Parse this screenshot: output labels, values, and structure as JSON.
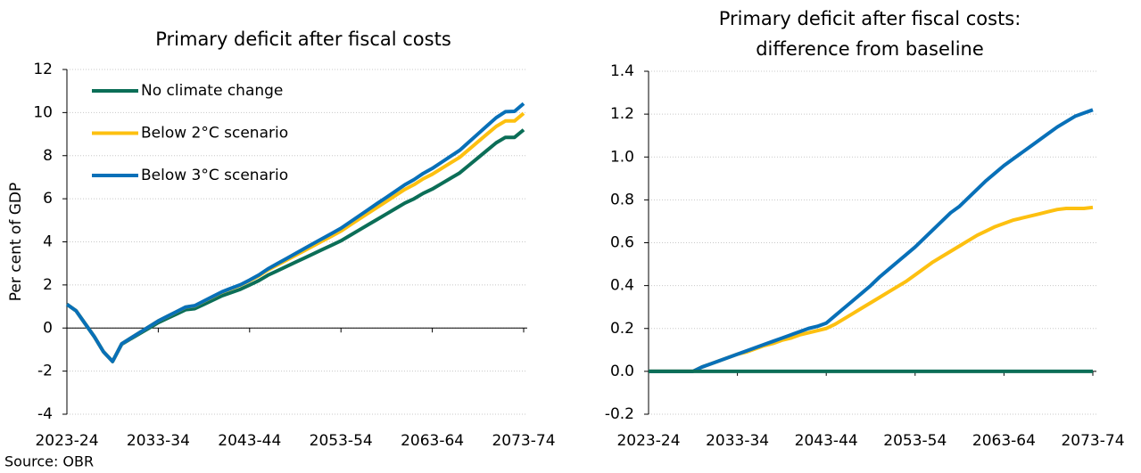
{
  "source": "Source: OBR",
  "chart_data": [
    {
      "type": "line",
      "title": [
        "Primary deficit after fiscal costs"
      ],
      "y_label": "Per cent of GDP",
      "categories": [
        "2023-24",
        null,
        null,
        null,
        null,
        null,
        null,
        null,
        null,
        null,
        "2033-34",
        null,
        null,
        null,
        null,
        null,
        null,
        null,
        null,
        null,
        "2043-44",
        null,
        null,
        null,
        null,
        null,
        null,
        null,
        null,
        null,
        "2053-54",
        null,
        null,
        null,
        null,
        null,
        null,
        null,
        null,
        null,
        "2063-64",
        null,
        null,
        null,
        null,
        null,
        null,
        null,
        null,
        null,
        "2073-74"
      ],
      "ylim": [
        -4,
        12
      ],
      "yticks": [
        -4,
        -2,
        0,
        2,
        4,
        6,
        8,
        10,
        12
      ],
      "grid": true,
      "legend": "upper left",
      "series": [
        {
          "name": "No climate change",
          "color": "#0b6e57",
          "values": [
            1.1,
            0.8,
            0.2,
            -0.4,
            -1.1,
            -1.55,
            -0.75,
            -0.5,
            -0.25,
            0.0,
            0.25,
            0.45,
            0.65,
            0.85,
            0.9,
            1.1,
            1.3,
            1.5,
            1.65,
            1.8,
            2.0,
            2.2,
            2.45,
            2.65,
            2.85,
            3.05,
            3.25,
            3.45,
            3.65,
            3.85,
            4.05,
            4.3,
            4.55,
            4.8,
            5.05,
            5.3,
            5.55,
            5.8,
            6.0,
            6.25,
            6.45,
            6.7,
            6.95,
            7.2,
            7.55,
            7.9,
            8.25,
            8.6,
            8.85,
            8.85,
            9.2
          ]
        },
        {
          "name": "Below 2°C scenario",
          "color": "#fdc010",
          "values": [
            1.1,
            0.8,
            0.2,
            -0.4,
            -1.1,
            -1.55,
            -0.73,
            -0.465,
            -0.2,
            0.065,
            0.33,
            0.54,
            0.755,
            0.97,
            1.03,
            1.245,
            1.455,
            1.67,
            1.83,
            1.99,
            2.2,
            2.42,
            2.695,
            2.92,
            3.145,
            3.37,
            3.595,
            3.82,
            4.045,
            4.27,
            4.5,
            4.78,
            5.06,
            5.335,
            5.61,
            5.885,
            6.16,
            6.435,
            6.655,
            6.925,
            7.14,
            7.405,
            7.665,
            7.925,
            8.285,
            8.645,
            9.005,
            9.36,
            9.61,
            9.61,
            9.965
          ]
        },
        {
          "name": "Below 3°C scenario",
          "color": "#0870b8",
          "values": [
            1.1,
            0.8,
            0.2,
            -0.4,
            -1.1,
            -1.55,
            -0.73,
            -0.465,
            -0.2,
            0.065,
            0.33,
            0.545,
            0.76,
            0.975,
            1.04,
            1.255,
            1.47,
            1.685,
            1.85,
            2.01,
            2.225,
            2.46,
            2.745,
            2.98,
            3.215,
            3.45,
            3.69,
            3.925,
            4.16,
            4.395,
            4.63,
            4.92,
            5.21,
            5.5,
            5.79,
            6.07,
            6.36,
            6.65,
            6.89,
            7.175,
            7.41,
            7.69,
            7.97,
            8.25,
            8.63,
            9.01,
            9.39,
            9.765,
            10.04,
            10.055,
            10.42
          ]
        }
      ]
    },
    {
      "type": "line",
      "title": [
        "Primary deficit after fiscal costs:",
        "difference from baseline"
      ],
      "categories": [
        "2023-24",
        null,
        null,
        null,
        null,
        null,
        null,
        null,
        null,
        null,
        "2033-34",
        null,
        null,
        null,
        null,
        null,
        null,
        null,
        null,
        null,
        "2043-44",
        null,
        null,
        null,
        null,
        null,
        null,
        null,
        null,
        null,
        "2053-54",
        null,
        null,
        null,
        null,
        null,
        null,
        null,
        null,
        null,
        "2063-64",
        null,
        null,
        null,
        null,
        null,
        null,
        null,
        null,
        null,
        "2073-74"
      ],
      "ylim": [
        -0.2,
        1.4
      ],
      "yticks": [
        -0.2,
        {
          "value": 0,
          "label": "0.0"
        },
        0.2,
        0.4,
        0.6,
        0.8,
        {
          "value": 1,
          "label": "1.0"
        },
        1.2,
        1.4
      ],
      "grid": true,
      "series": [
        {
          "color": "#fdc010",
          "values": [
            0,
            0,
            0,
            0,
            0,
            0,
            0.02,
            0.035,
            0.05,
            0.065,
            0.08,
            0.09,
            0.105,
            0.12,
            0.13,
            0.145,
            0.155,
            0.17,
            0.18,
            0.19,
            0.2,
            0.22,
            0.245,
            0.27,
            0.295,
            0.32,
            0.345,
            0.37,
            0.395,
            0.42,
            0.45,
            0.48,
            0.51,
            0.535,
            0.56,
            0.585,
            0.61,
            0.635,
            0.655,
            0.675,
            0.69,
            0.705,
            0.715,
            0.725,
            0.735,
            0.745,
            0.755,
            0.76,
            0.76,
            0.76,
            0.765
          ]
        },
        {
          "color": "#0870b8",
          "values": [
            0,
            0,
            0,
            0,
            0,
            0,
            0.02,
            0.035,
            0.05,
            0.065,
            0.08,
            0.095,
            0.11,
            0.125,
            0.14,
            0.155,
            0.17,
            0.185,
            0.2,
            0.21,
            0.225,
            0.26,
            0.295,
            0.33,
            0.365,
            0.4,
            0.44,
            0.475,
            0.51,
            0.545,
            0.58,
            0.62,
            0.66,
            0.7,
            0.74,
            0.77,
            0.81,
            0.85,
            0.89,
            0.925,
            0.96,
            0.99,
            1.02,
            1.05,
            1.08,
            1.11,
            1.14,
            1.165,
            1.19,
            1.205,
            1.22
          ]
        },
        {
          "color": "#0b6e57",
          "values": [
            0,
            0,
            0,
            0,
            0,
            0,
            0,
            0,
            0,
            0,
            0,
            0,
            0,
            0,
            0,
            0,
            0,
            0,
            0,
            0,
            0,
            0,
            0,
            0,
            0,
            0,
            0,
            0,
            0,
            0,
            0,
            0,
            0,
            0,
            0,
            0,
            0,
            0,
            0,
            0,
            0,
            0,
            0,
            0,
            0,
            0,
            0,
            0,
            0,
            0,
            0
          ]
        }
      ]
    }
  ]
}
